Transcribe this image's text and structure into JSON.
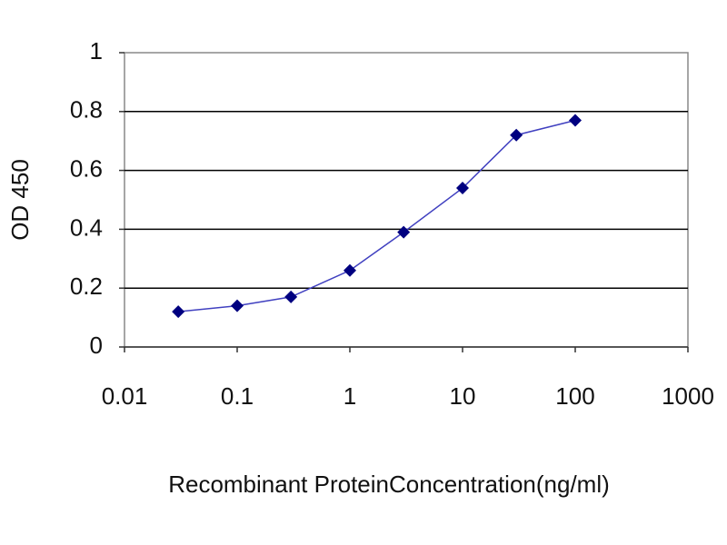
{
  "chart_data": {
    "type": "line",
    "xlabel": "Recombinant ProteinConcentration(ng/ml)",
    "ylabel": "OD 450",
    "x": [
      0.03,
      0.1,
      0.3,
      1,
      3,
      10,
      30,
      100
    ],
    "series": [
      {
        "color": "#000080",
        "values": [
          0.12,
          0.14,
          0.17,
          0.26,
          0.39,
          0.54,
          0.72,
          0.77
        ]
      }
    ],
    "xlim": [
      0.01,
      1000
    ],
    "xticks": [
      0.01,
      0.1,
      1,
      10,
      100,
      1000
    ],
    "xscale": "log",
    "ylim": [
      0,
      1
    ],
    "yticks": [
      0,
      0.2,
      0.4,
      0.6,
      0.8,
      1
    ],
    "grid": true
  }
}
